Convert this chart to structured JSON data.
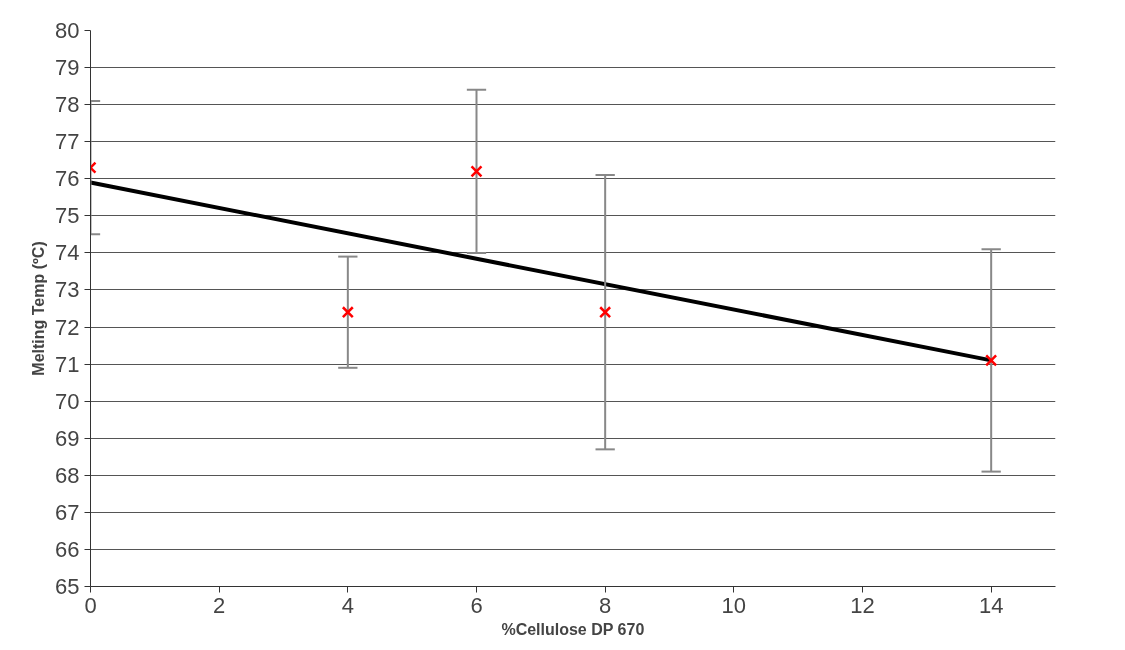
{
  "chart_data": {
    "type": "scatter",
    "xlabel": "%Cellulose DP 670",
    "ylabel": "Melting Temp (ºC)",
    "xlim": [
      0,
      15
    ],
    "xticks": [
      0,
      2,
      4,
      6,
      8,
      10,
      12,
      14
    ],
    "ylim": [
      65,
      80
    ],
    "yticks": [
      65,
      66,
      67,
      68,
      69,
      70,
      71,
      72,
      73,
      74,
      75,
      76,
      77,
      78,
      79,
      80
    ],
    "grid": "y",
    "series": [
      {
        "color": "#ff0000",
        "marker": "cross",
        "x": [
          0,
          4,
          6,
          8,
          14
        ],
        "values": [
          76.3,
          72.4,
          76.2,
          72.4,
          71.1
        ],
        "errors": [
          [
            74.5,
            78.1
          ],
          [
            70.9,
            73.9
          ],
          [
            74.0,
            78.4
          ],
          [
            68.7,
            76.1
          ],
          [
            68.1,
            74.1
          ]
        ]
      },
      {
        "type": "line",
        "color": "#000000",
        "line_style": "solid",
        "x": [
          0,
          14
        ],
        "values": [
          75.9,
          71.1
        ]
      }
    ]
  }
}
